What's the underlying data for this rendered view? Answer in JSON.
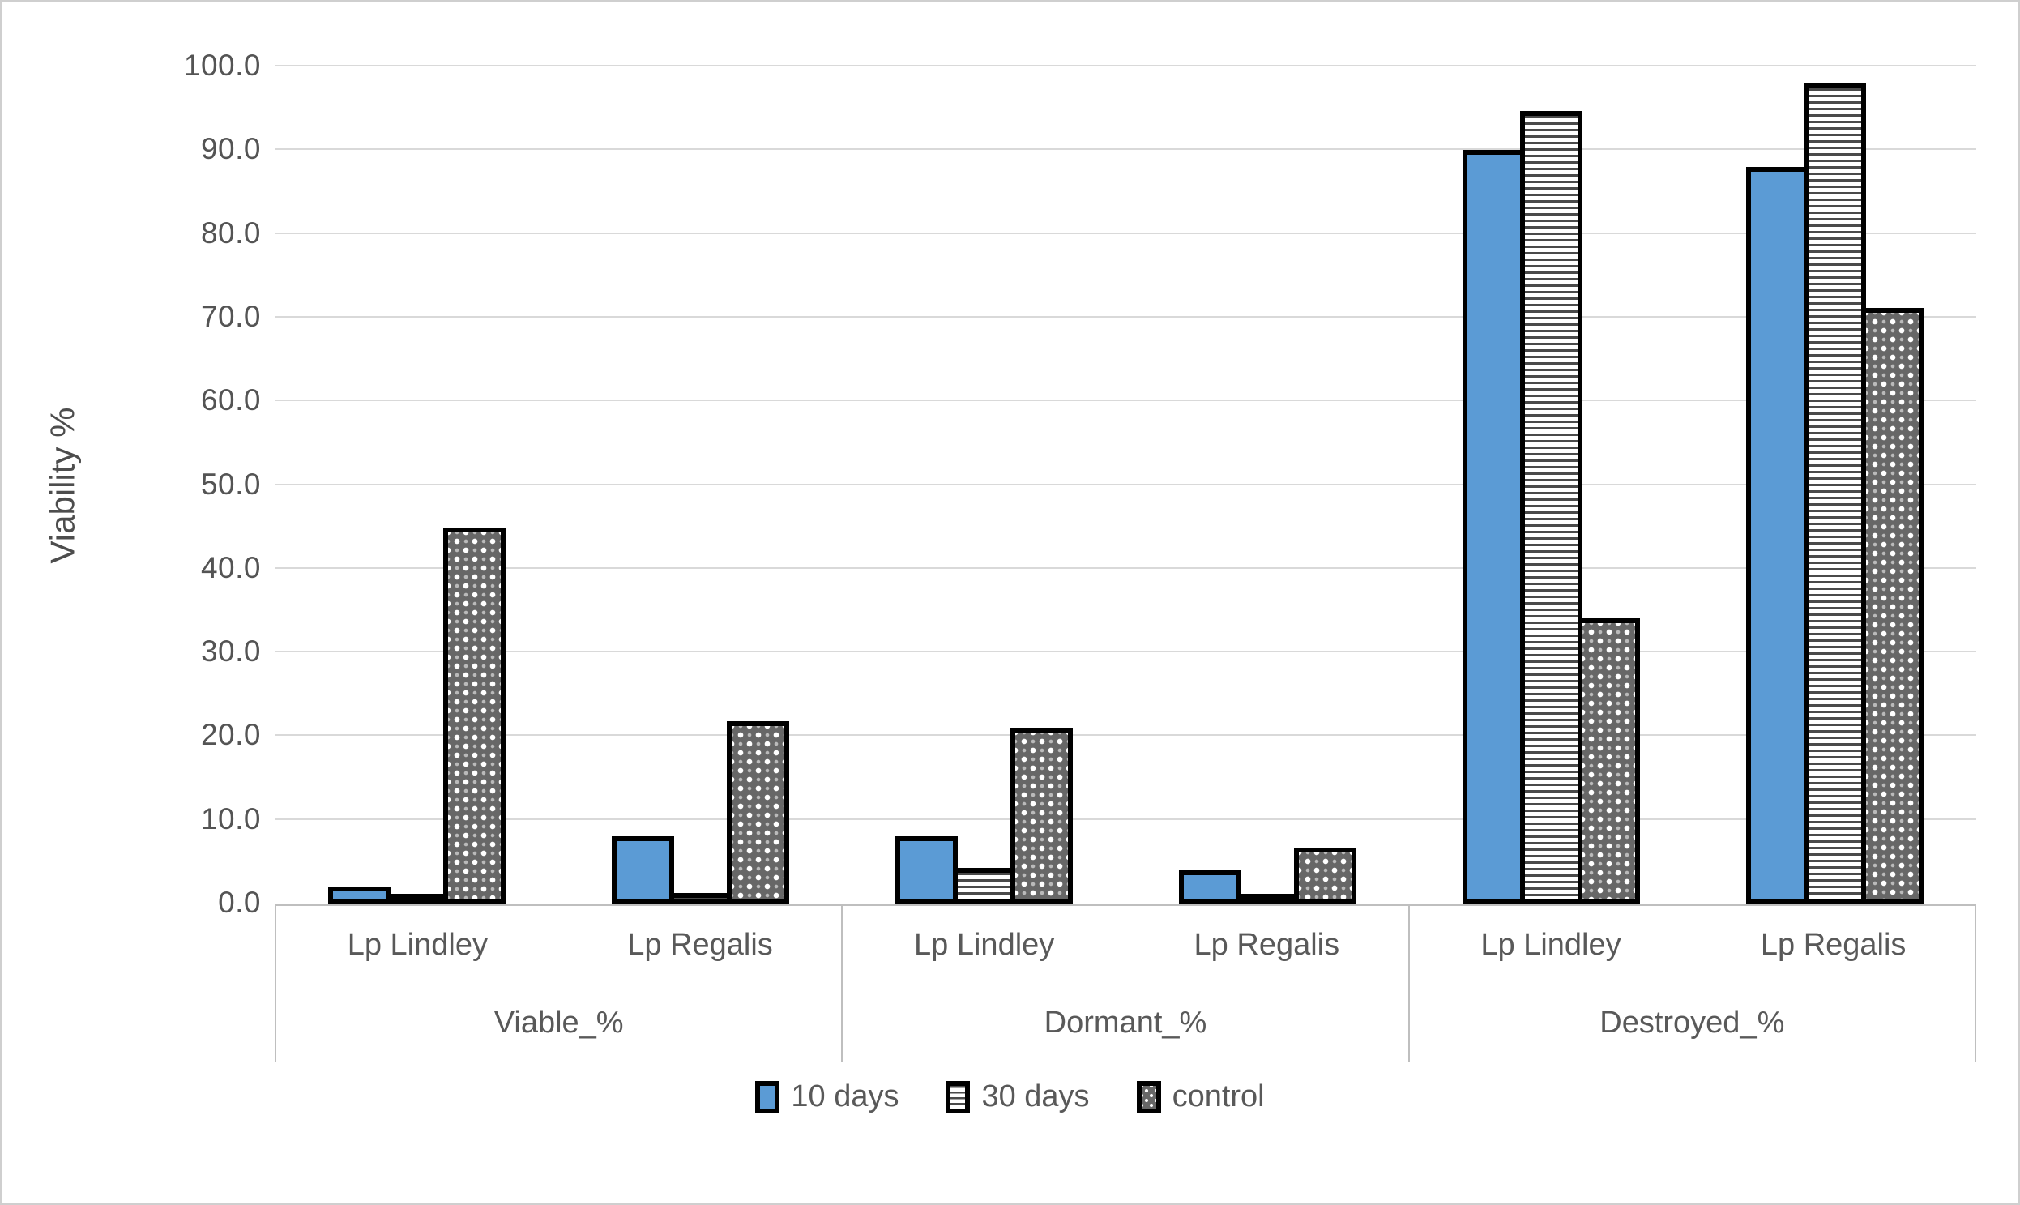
{
  "chart_data": {
    "type": "bar",
    "title": "",
    "ylabel": "Viability %",
    "xlabel": "",
    "ylim": [
      0,
      100
    ],
    "ytick_step": 10,
    "ytick_labels": [
      "0.0",
      "10.0",
      "20.0",
      "30.0",
      "40.0",
      "50.0",
      "60.0",
      "70.0",
      "80.0",
      "90.0",
      "100.0"
    ],
    "grid": true,
    "legend_position": "bottom",
    "groups": [
      {
        "label": "Viable_%",
        "categories": [
          "Lp Lindley",
          "Lp Regalis"
        ]
      },
      {
        "label": "Dormant_%",
        "categories": [
          "Lp Lindley",
          "Lp Regalis"
        ]
      },
      {
        "label": "Destroyed_%",
        "categories": [
          "Lp Lindley",
          "Lp Regalis"
        ]
      }
    ],
    "series": [
      {
        "name": "10 days",
        "pattern": "solid",
        "color": "#5b9bd5",
        "values": [
          [
            2.0,
            8.0
          ],
          [
            8.0,
            4.0
          ],
          [
            90.0,
            88.0
          ]
        ]
      },
      {
        "name": "30 days",
        "pattern": "lines",
        "color": "#ffffff",
        "values": [
          [
            1.0,
            1.3
          ],
          [
            4.3,
            0.7
          ],
          [
            94.7,
            98.0
          ]
        ]
      },
      {
        "name": "control",
        "pattern": "dots",
        "color": "#676767",
        "values": [
          [
            44.9,
            21.8
          ],
          [
            21.0,
            6.7
          ],
          [
            34.1,
            71.2
          ]
        ]
      }
    ]
  },
  "colors": {
    "series_blue": "#5b9bd5",
    "pattern_gray": "#676767",
    "gridline": "#d9d9d9",
    "axis_line": "#bfbfbf",
    "text": "#595959",
    "bar_border": "#000000"
  }
}
